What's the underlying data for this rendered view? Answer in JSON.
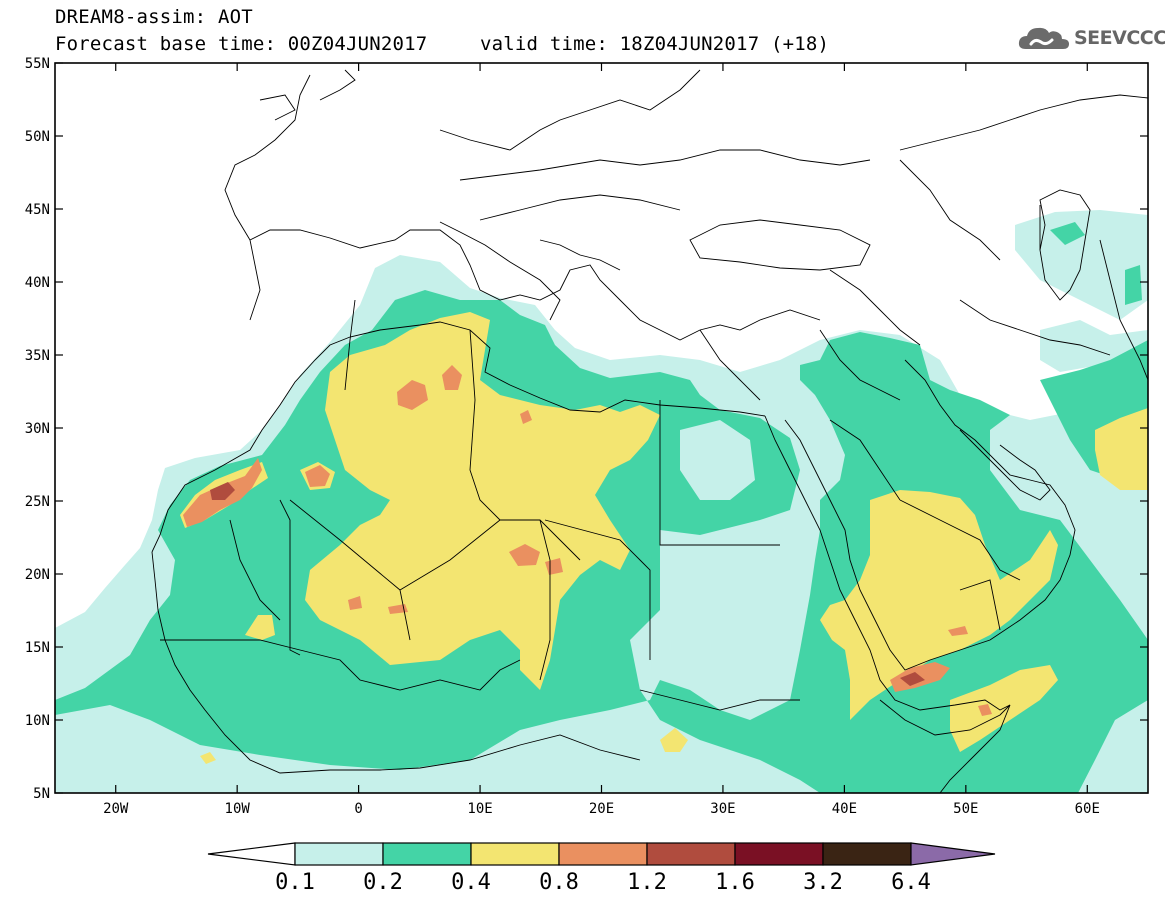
{
  "title": "DREAM8-assim: AOT",
  "forecast_base": "Forecast base time: 00Z04JUN2017",
  "valid_time": "valid time: 18Z04JUN2017 (+18)",
  "logo_text": "SEEVCCC",
  "colors": {
    "c01": "#c6f0ea",
    "c02": "#44d4a6",
    "c04": "#f3e571",
    "c08": "#ea9060",
    "c12": "#b04c3e",
    "c16": "#7a1024",
    "c32": "#3a2414",
    "c64": "#8b6aa8"
  },
  "map": {
    "lon_min": -25,
    "lon_max": 65,
    "lat_min": 5,
    "lat_max": 55,
    "lat_ticks": [
      "5N",
      "10N",
      "15N",
      "20N",
      "25N",
      "30N",
      "35N",
      "40N",
      "45N",
      "50N",
      "55N"
    ],
    "lon_ticks": [
      "20W",
      "10W",
      "0",
      "10E",
      "20E",
      "30E",
      "40E",
      "50E",
      "60E"
    ],
    "lat_values": [
      5,
      10,
      15,
      20,
      25,
      30,
      35,
      40,
      45,
      50,
      55
    ],
    "lon_values": [
      -20,
      -10,
      0,
      10,
      20,
      30,
      40,
      50,
      60
    ]
  },
  "colorbar": {
    "labels": [
      "0.1",
      "0.2",
      "0.4",
      "0.8",
      "1.2",
      "1.6",
      "3.2",
      "6.4"
    ],
    "swatches": [
      "#c6f0ea",
      "#44d4a6",
      "#f3e571",
      "#ea9060",
      "#b04c3e",
      "#7a1024",
      "#3a2414"
    ],
    "over_color": "#8b6aa8",
    "under_color": "#ffffff"
  }
}
